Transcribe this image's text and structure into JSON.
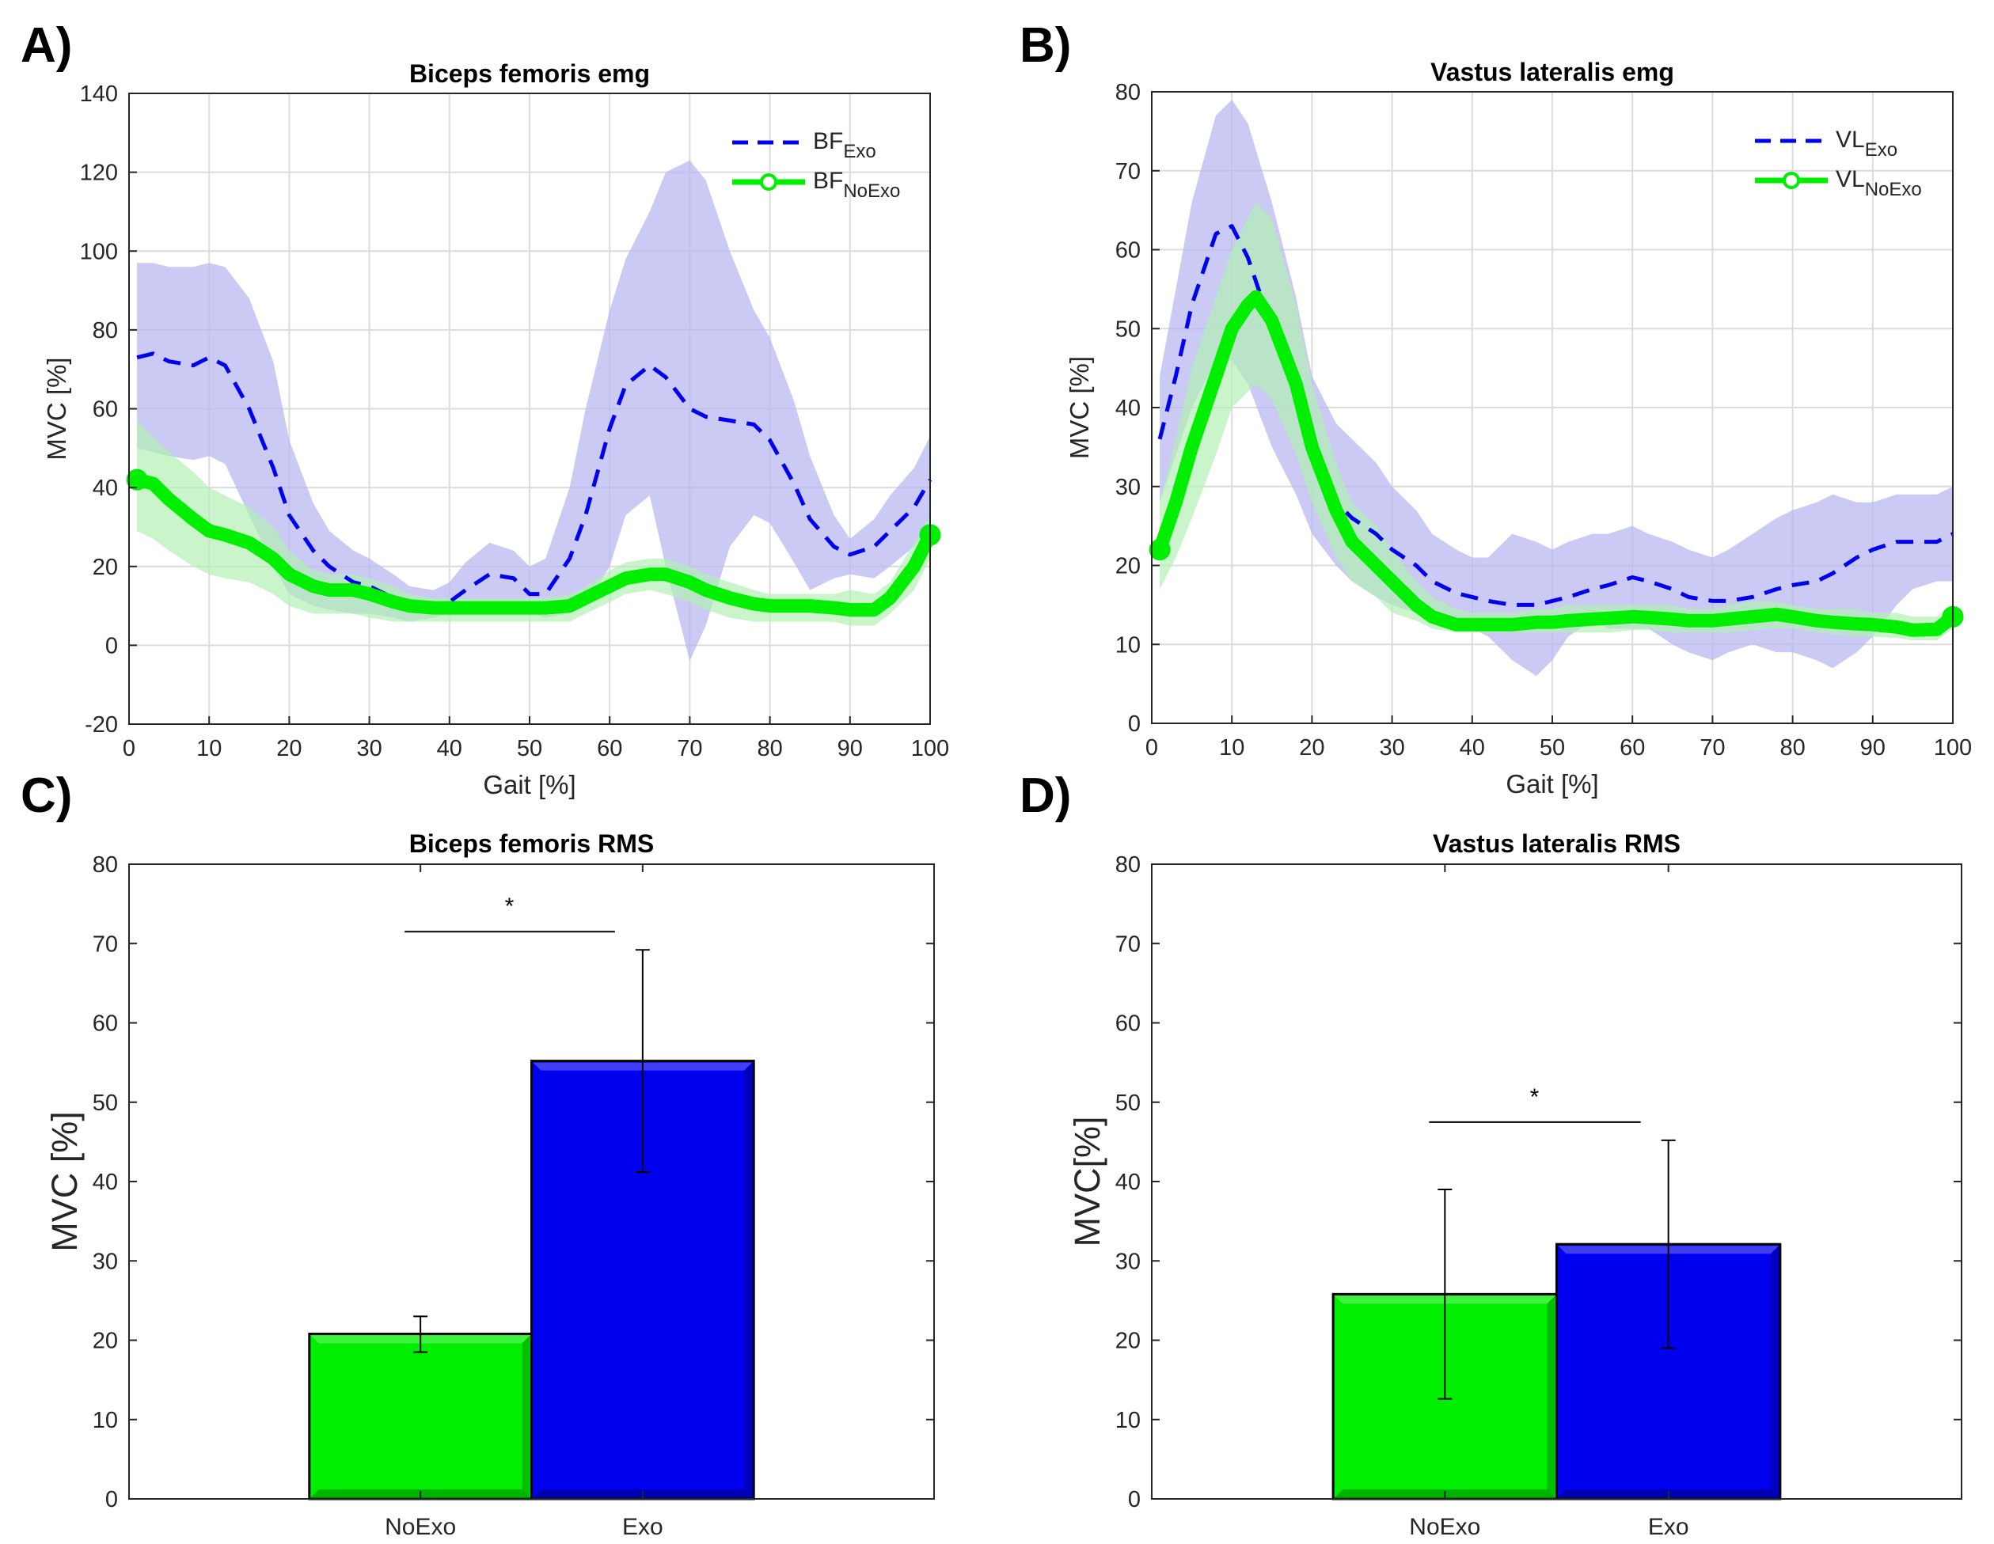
{
  "panel_labels": [
    "A)",
    "B)",
    "C)",
    "D)"
  ],
  "colors": {
    "exo": "#0000ee",
    "exo_band": "#b8b8f2",
    "noexo": "#00ee00",
    "noexo_band": "#b4f0b4",
    "overlap_band": "#8fc8c0"
  },
  "chart_data": [
    {
      "id": "A",
      "type": "line",
      "title": "Biceps femoris emg",
      "xlabel": "Gait [%]",
      "ylabel": "MVC [%]",
      "xlim": [
        0,
        100
      ],
      "ylim": [
        -20,
        140
      ],
      "xticks": [
        0,
        10,
        20,
        30,
        40,
        50,
        60,
        70,
        80,
        90,
        100
      ],
      "yticks": [
        -20,
        0,
        20,
        40,
        60,
        80,
        100,
        120,
        140
      ],
      "grid": true,
      "legend_position": "top-right",
      "series": [
        {
          "name": "BF",
          "subscript": "Exo",
          "style": "dashed",
          "color": "#0000ee",
          "x": [
            1,
            3,
            5,
            8,
            10,
            12,
            15,
            18,
            20,
            23,
            25,
            28,
            30,
            33,
            35,
            38,
            40,
            42,
            45,
            48,
            50,
            52,
            55,
            57,
            60,
            62,
            65,
            67,
            70,
            72,
            75,
            78,
            80,
            83,
            85,
            88,
            90,
            93,
            95,
            98,
            100
          ],
          "y": [
            73,
            74,
            72,
            71,
            73,
            71,
            60,
            45,
            33,
            24,
            20,
            16,
            15,
            12,
            10,
            10,
            11,
            14,
            18,
            17,
            13,
            13,
            22,
            33,
            55,
            66,
            71,
            68,
            60,
            58,
            57,
            56,
            52,
            41,
            32,
            25,
            23,
            25,
            29,
            35,
            42
          ],
          "upper": [
            97,
            97,
            96,
            96,
            97,
            96,
            88,
            72,
            52,
            36,
            29,
            24,
            22,
            18,
            15,
            14,
            16,
            21,
            26,
            24,
            20,
            22,
            40,
            60,
            85,
            98,
            110,
            120,
            123,
            118,
            100,
            85,
            78,
            62,
            48,
            33,
            27,
            32,
            38,
            45,
            53
          ],
          "lower": [
            50,
            49,
            48,
            47,
            48,
            46,
            33,
            20,
            13,
            10,
            9,
            8,
            8,
            7,
            6,
            7,
            8,
            9,
            11,
            10,
            8,
            7,
            8,
            10,
            20,
            33,
            38,
            20,
            -4,
            5,
            25,
            33,
            31,
            21,
            14,
            17,
            18,
            17,
            20,
            25,
            31
          ]
        },
        {
          "name": "BF",
          "subscript": "NoExo",
          "style": "thick-solid-circle",
          "color": "#00ee00",
          "x": [
            1,
            3,
            5,
            8,
            10,
            12,
            15,
            18,
            20,
            23,
            25,
            28,
            30,
            33,
            35,
            38,
            40,
            42,
            45,
            48,
            50,
            52,
            55,
            57,
            60,
            62,
            65,
            67,
            70,
            72,
            75,
            78,
            80,
            83,
            85,
            88,
            90,
            93,
            95,
            98,
            100
          ],
          "y": [
            42,
            41,
            37,
            32,
            29,
            28,
            26,
            22,
            18,
            15,
            14,
            14,
            13,
            11,
            10,
            9.5,
            9.5,
            9.5,
            9.5,
            9.5,
            9.5,
            9.5,
            10,
            12,
            15,
            17,
            18,
            18,
            16,
            14,
            12,
            10.5,
            10,
            10,
            10,
            9.5,
            9,
            9,
            12,
            20,
            28
          ],
          "upper": [
            57,
            53,
            49,
            44,
            40,
            38,
            35,
            30,
            24,
            19,
            18,
            18,
            17,
            15,
            13,
            12,
            12,
            12,
            12,
            12,
            12,
            12,
            13,
            15,
            19,
            21,
            22,
            22,
            20,
            18,
            16,
            14,
            13,
            13,
            13,
            13,
            14,
            13,
            16,
            26,
            33
          ],
          "lower": [
            29,
            27,
            24,
            20,
            18,
            17,
            16,
            13,
            10,
            8,
            8,
            8,
            7,
            6,
            6,
            6,
            6,
            6,
            6,
            6,
            6,
            6,
            6,
            8,
            11,
            13,
            14,
            13,
            11,
            9,
            7,
            6,
            6,
            6,
            6,
            6,
            5,
            5,
            8,
            14,
            22
          ]
        }
      ]
    },
    {
      "id": "B",
      "type": "line",
      "title": "Vastus lateralis emg",
      "xlabel": "Gait [%]",
      "ylabel": "MVC [%]",
      "xlim": [
        0,
        100
      ],
      "ylim": [
        0,
        80
      ],
      "xticks": [
        0,
        10,
        20,
        30,
        40,
        50,
        60,
        70,
        80,
        90,
        100
      ],
      "yticks": [
        0,
        10,
        20,
        30,
        40,
        50,
        60,
        70,
        80
      ],
      "grid": true,
      "legend_position": "top-right",
      "series": [
        {
          "name": "VL",
          "subscript": "Exo",
          "style": "dashed",
          "color": "#0000ee",
          "x": [
            1,
            3,
            5,
            8,
            10,
            12,
            15,
            18,
            20,
            23,
            25,
            28,
            30,
            33,
            35,
            38,
            40,
            42,
            45,
            48,
            50,
            52,
            55,
            57,
            60,
            62,
            65,
            67,
            70,
            72,
            75,
            78,
            80,
            83,
            85,
            88,
            90,
            93,
            95,
            98,
            100
          ],
          "y": [
            36,
            44,
            53,
            62,
            63,
            59,
            50,
            42,
            34,
            28,
            26,
            24,
            22,
            20,
            18,
            16.5,
            16,
            15.5,
            15,
            15,
            15.5,
            16,
            17,
            17.5,
            18.5,
            18,
            17,
            16,
            15.5,
            15.5,
            16,
            17,
            17.5,
            18,
            19,
            21,
            22,
            23,
            23,
            23,
            24
          ],
          "upper": [
            44,
            55,
            66,
            77,
            79,
            76,
            66,
            54,
            44,
            38,
            36,
            33,
            30,
            27,
            24,
            22,
            21,
            21,
            24,
            23,
            22,
            23,
            24,
            24,
            25,
            24,
            23,
            22,
            21,
            22,
            24,
            26,
            27,
            28,
            29,
            28,
            28,
            29,
            29,
            29,
            30
          ],
          "lower": [
            28,
            34,
            40,
            46,
            46,
            43,
            35,
            29,
            24,
            20,
            18,
            16,
            15,
            14,
            13,
            12,
            12,
            11,
            8,
            6,
            8,
            11,
            13,
            12,
            12,
            12,
            10,
            9,
            8,
            9,
            10,
            9,
            9,
            8,
            7,
            9,
            11,
            15,
            17,
            18,
            18
          ]
        },
        {
          "name": "VL",
          "subscript": "NoExo",
          "style": "thick-solid-circle",
          "color": "#00ee00",
          "x": [
            1,
            3,
            5,
            8,
            10,
            12,
            13,
            15,
            18,
            20,
            23,
            25,
            28,
            30,
            33,
            35,
            38,
            40,
            42,
            45,
            48,
            50,
            52,
            55,
            57,
            60,
            62,
            65,
            67,
            70,
            72,
            75,
            78,
            80,
            83,
            85,
            88,
            90,
            93,
            95,
            98,
            100
          ],
          "y": [
            22,
            28,
            35,
            44,
            50,
            53,
            54,
            51,
            43,
            35,
            27,
            23,
            20,
            18,
            15,
            13.5,
            12.5,
            12.5,
            12.5,
            12.5,
            12.8,
            12.8,
            13,
            13.2,
            13.3,
            13.5,
            13.4,
            13.2,
            13,
            13,
            13.2,
            13.5,
            13.8,
            13.5,
            13,
            12.8,
            12.6,
            12.5,
            12.2,
            11.8,
            11.9,
            13.5
          ],
          "upper": [
            28,
            36,
            45,
            54,
            60,
            64,
            66,
            64,
            53,
            43,
            33,
            28,
            25,
            22,
            18,
            16,
            14.5,
            14,
            14,
            14,
            14.5,
            14.5,
            15,
            15,
            15,
            15,
            15,
            15,
            14.5,
            14.5,
            15,
            15.5,
            15.5,
            15,
            14.5,
            14.5,
            14.5,
            14,
            14,
            13.5,
            13.5,
            15
          ],
          "lower": [
            17,
            21,
            26,
            34,
            40,
            42,
            43,
            41,
            34,
            28,
            21,
            18,
            16,
            14,
            13,
            12,
            11.5,
            11.5,
            11.5,
            11.5,
            11.5,
            11.5,
            11.5,
            11.5,
            11.5,
            11.8,
            11.8,
            11.5,
            11.5,
            11.5,
            11.5,
            11.8,
            12,
            12,
            11.5,
            11.3,
            11,
            11,
            10.8,
            10.5,
            10.5,
            12
          ]
        }
      ]
    },
    {
      "id": "C",
      "type": "bar",
      "title": "Biceps femoris RMS",
      "ylabel": "MVC [%]",
      "ylim": [
        0,
        80
      ],
      "yticks": [
        0,
        10,
        20,
        30,
        40,
        50,
        60,
        70,
        80
      ],
      "categories": [
        "NoExo",
        "Exo"
      ],
      "values": [
        20.8,
        55.2
      ],
      "error_upper": [
        23.0,
        69.2
      ],
      "error_lower": [
        18.5,
        41.2
      ],
      "bar_colors": [
        "#00ee00",
        "#0000ee"
      ],
      "significance": {
        "label": "*",
        "level": 71.5
      }
    },
    {
      "id": "D",
      "type": "bar",
      "title": "Vastus lateralis RMS",
      "ylabel": "MVC[%]",
      "ylim": [
        0,
        80
      ],
      "yticks": [
        0,
        10,
        20,
        30,
        40,
        50,
        60,
        70,
        80
      ],
      "categories": [
        "NoExo",
        "Exo"
      ],
      "values": [
        25.8,
        32.1
      ],
      "error_upper": [
        39.0,
        45.2
      ],
      "error_lower": [
        12.6,
        19.0
      ],
      "bar_colors": [
        "#00ee00",
        "#0000ee"
      ],
      "significance": {
        "label": "*",
        "level": 47.5
      }
    }
  ]
}
